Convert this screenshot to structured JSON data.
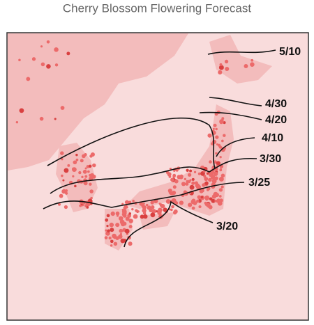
{
  "title": "Cherry Blossom Flowering Forecast",
  "isolines": [
    {
      "label": "5/10"
    },
    {
      "label": "4/30"
    },
    {
      "label": "4/20"
    },
    {
      "label": "4/10"
    },
    {
      "label": "3/30"
    },
    {
      "label": "3/25"
    },
    {
      "label": "3/20"
    }
  ]
}
